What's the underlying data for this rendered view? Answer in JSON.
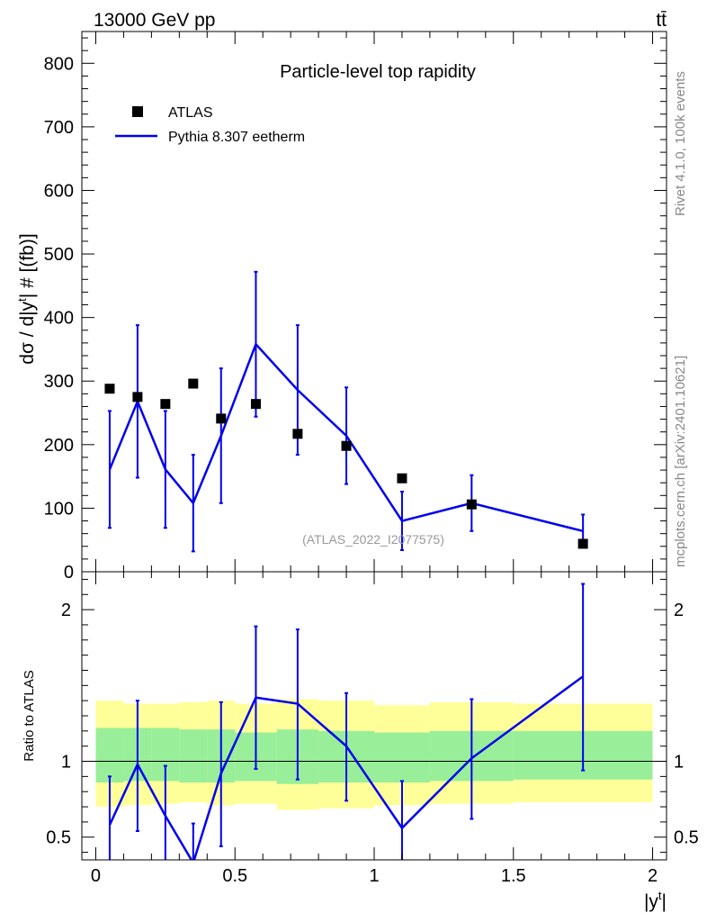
{
  "header": {
    "energy_label": "13000 GeV pp",
    "process_label": "tt̄"
  },
  "side_labels": {
    "rivet": "Rivet 4.1.0,  100k events",
    "mcplots": "mcplots.cern.ch [arXiv:2401.10621]"
  },
  "chart_data": {
    "type": "scatter",
    "title": "Particle-level top rapidity",
    "analysis_id": "(ATLAS_2022_I2077575)",
    "xlabel": "|y",
    "xlabel_sup": "t",
    "ylabel_main": "dσ / d|y",
    "ylabel_main_sup": "t",
    "ylabel_main_tail": "| # [(fb)]",
    "ylabel_ratio": "Ratio to ATLAS",
    "xlim": [
      -0.05,
      2.05
    ],
    "ylim_main": [
      0,
      850
    ],
    "ylim_ratio": [
      0.35,
      2.25
    ],
    "x_ticks": [
      0,
      0.5,
      1,
      1.5,
      2
    ],
    "x_tick_labels": [
      "0",
      "0.5",
      "1",
      "1.5",
      "2"
    ],
    "y_ticks_main": [
      0,
      100,
      200,
      300,
      400,
      500,
      600,
      700,
      800
    ],
    "y_tick_labels_main": [
      "0",
      "100",
      "200",
      "300",
      "400",
      "500",
      "600",
      "700",
      "800"
    ],
    "y_ticks_ratio": [
      0.5,
      1,
      2
    ],
    "y_tick_labels_ratio": [
      "0.5",
      "1",
      "2"
    ],
    "legend": [
      {
        "label": "ATLAS",
        "marker": "square",
        "color": "#000000"
      },
      {
        "label": "Pythia 8.307 eetherm",
        "marker": "line",
        "color": "#0000ee"
      }
    ],
    "bin_edges": [
      0,
      0.1,
      0.2,
      0.3,
      0.4,
      0.5,
      0.65,
      0.8,
      1.0,
      1.2,
      1.5,
      2.0
    ],
    "bin_centers": [
      0.05,
      0.15,
      0.25,
      0.35,
      0.45,
      0.575,
      0.725,
      0.9,
      1.1,
      1.35,
      1.75
    ],
    "series": [
      {
        "name": "ATLAS",
        "color": "#000000",
        "values": [
          288,
          275,
          264,
          296,
          241,
          264,
          217,
          198,
          147,
          106,
          44
        ]
      },
      {
        "name": "Pythia 8.307 eetherm",
        "color": "#0000ee",
        "values": [
          161,
          268,
          161,
          108,
          214,
          358,
          286,
          214,
          80,
          108,
          64
        ],
        "err_low": [
          92,
          120,
          92,
          76,
          106,
          114,
          102,
          76,
          46,
          44,
          26
        ],
        "err_high": [
          92,
          120,
          92,
          76,
          106,
          114,
          102,
          76,
          46,
          44,
          26
        ]
      }
    ],
    "ratio": {
      "values": [
        0.58,
        0.98,
        0.64,
        0.33,
        0.92,
        1.42,
        1.38,
        1.1,
        0.56,
        1.02,
        1.56
      ],
      "err_low": [
        0.32,
        0.44,
        0.35,
        0.27,
        0.48,
        0.47,
        0.5,
        0.36,
        0.31,
        0.4,
        0.62
      ],
      "err_high": [
        0.32,
        0.42,
        0.33,
        0.26,
        0.47,
        0.47,
        0.49,
        0.35,
        0.31,
        0.39,
        0.61
      ],
      "band_inner_low": [
        0.86,
        0.87,
        0.87,
        0.86,
        0.86,
        0.87,
        0.85,
        0.86,
        0.86,
        0.87,
        0.88
      ],
      "band_inner_high": [
        1.22,
        1.22,
        1.22,
        1.21,
        1.21,
        1.19,
        1.21,
        1.2,
        1.19,
        1.2,
        1.2
      ],
      "band_outer_low": [
        0.7,
        0.71,
        0.72,
        0.73,
        0.71,
        0.72,
        0.68,
        0.69,
        0.71,
        0.72,
        0.73
      ],
      "band_outer_high": [
        1.4,
        1.38,
        1.38,
        1.39,
        1.4,
        1.38,
        1.41,
        1.4,
        1.37,
        1.39,
        1.38
      ],
      "band_inner_color": "#99ee99",
      "band_outer_color": "#ffff99",
      "reference_value": 1
    }
  }
}
